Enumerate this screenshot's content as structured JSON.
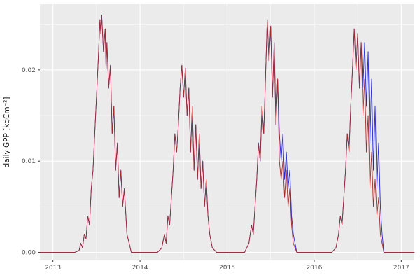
{
  "chart_data": {
    "type": "line",
    "title": "",
    "xlabel": "",
    "ylabel": "daily GPP [kgCm⁻²]",
    "xlim": [
      2012.85,
      2017.15
    ],
    "ylim": [
      -0.0008,
      0.0272
    ],
    "grid": true,
    "legend": "none",
    "panel_bg": "#EBEBEB",
    "grid_color": "#FFFFFF",
    "tick_color": "#333333",
    "x_ticks": {
      "values": [
        2013,
        2014,
        2015,
        2016,
        2017
      ],
      "labels": [
        "2013",
        "2014",
        "2015",
        "2016",
        "2017"
      ]
    },
    "x_minor": [
      2013.5,
      2014.5,
      2015.5,
      2016.5
    ],
    "y_ticks": {
      "values": [
        0,
        0.01,
        0.02
      ],
      "labels": [
        "0.00",
        "0.01",
        "0.02"
      ]
    },
    "y_minor": [
      0.005,
      0.015,
      0.025
    ],
    "series": [
      {
        "name": "series-blue",
        "color": "#2222DD",
        "x": [
          2012.85,
          2013.25,
          2013.3,
          2013.32,
          2013.34,
          2013.36,
          2013.38,
          2013.4,
          2013.42,
          2013.44,
          2013.46,
          2013.48,
          2013.5,
          2013.52,
          2013.54,
          2013.55,
          2013.56,
          2013.58,
          2013.6,
          2013.61,
          2013.62,
          2013.64,
          2013.66,
          2013.68,
          2013.7,
          2013.72,
          2013.74,
          2013.76,
          2013.78,
          2013.8,
          2013.82,
          2013.85,
          2013.9,
          2014.2,
          2014.25,
          2014.28,
          2014.3,
          2014.32,
          2014.34,
          2014.36,
          2014.38,
          2014.4,
          2014.42,
          2014.44,
          2014.46,
          2014.48,
          2014.5,
          2014.52,
          2014.54,
          2014.56,
          2014.58,
          2014.6,
          2014.62,
          2014.64,
          2014.66,
          2014.68,
          2014.7,
          2014.72,
          2014.74,
          2014.76,
          2014.78,
          2014.8,
          2014.83,
          2014.88,
          2015.2,
          2015.25,
          2015.28,
          2015.3,
          2015.32,
          2015.34,
          2015.36,
          2015.38,
          2015.4,
          2015.42,
          2015.44,
          2015.46,
          2015.48,
          2015.5,
          2015.52,
          2015.54,
          2015.56,
          2015.58,
          2015.6,
          2015.62,
          2015.64,
          2015.66,
          2015.68,
          2015.7,
          2015.72,
          2015.74,
          2015.76,
          2015.8,
          2016.2,
          2016.25,
          2016.28,
          2016.3,
          2016.32,
          2016.34,
          2016.36,
          2016.38,
          2016.4,
          2016.42,
          2016.44,
          2016.46,
          2016.48,
          2016.5,
          2016.52,
          2016.54,
          2016.56,
          2016.58,
          2016.6,
          2016.62,
          2016.64,
          2016.66,
          2016.68,
          2016.7,
          2016.72,
          2016.74,
          2016.76,
          2016.78,
          2016.8,
          2016.9,
          2017.15
        ],
        "y": [
          0,
          0,
          0.0002,
          0.001,
          0.0005,
          0.002,
          0.0015,
          0.004,
          0.003,
          0.007,
          0.009,
          0.013,
          0.017,
          0.021,
          0.0255,
          0.024,
          0.026,
          0.022,
          0.0245,
          0.02,
          0.023,
          0.018,
          0.0205,
          0.013,
          0.016,
          0.009,
          0.012,
          0.006,
          0.009,
          0.005,
          0.007,
          0.002,
          0,
          0,
          0.0005,
          0.002,
          0.001,
          0.004,
          0.003,
          0.006,
          0.009,
          0.013,
          0.011,
          0.014,
          0.018,
          0.0205,
          0.017,
          0.0202,
          0.015,
          0.018,
          0.011,
          0.016,
          0.009,
          0.014,
          0.008,
          0.013,
          0.007,
          0.01,
          0.005,
          0.008,
          0.004,
          0.002,
          0.0005,
          0,
          0,
          0.001,
          0.003,
          0.002,
          0.005,
          0.008,
          0.012,
          0.01,
          0.016,
          0.013,
          0.019,
          0.0255,
          0.021,
          0.0248,
          0.017,
          0.023,
          0.014,
          0.019,
          0.013,
          0.01,
          0.013,
          0.008,
          0.011,
          0.007,
          0.009,
          0.004,
          0.002,
          0,
          0,
          0.0005,
          0.002,
          0.004,
          0.003,
          0.006,
          0.009,
          0.013,
          0.011,
          0.016,
          0.02,
          0.0245,
          0.02,
          0.024,
          0.018,
          0.023,
          0.018,
          0.023,
          0.016,
          0.022,
          0.012,
          0.019,
          0.009,
          0.016,
          0.007,
          0.012,
          0.005,
          0.002,
          0,
          0,
          0
        ]
      },
      {
        "name": "series-darkred",
        "color": "#A52A2A",
        "x": [
          2012.85,
          2013.25,
          2013.3,
          2013.32,
          2013.34,
          2013.36,
          2013.38,
          2013.4,
          2013.42,
          2013.44,
          2013.46,
          2013.48,
          2013.5,
          2013.52,
          2013.54,
          2013.55,
          2013.56,
          2013.58,
          2013.6,
          2013.61,
          2013.62,
          2013.64,
          2013.66,
          2013.68,
          2013.7,
          2013.72,
          2013.74,
          2013.76,
          2013.78,
          2013.8,
          2013.82,
          2013.85,
          2013.9,
          2014.2,
          2014.25,
          2014.28,
          2014.3,
          2014.32,
          2014.34,
          2014.36,
          2014.38,
          2014.4,
          2014.42,
          2014.44,
          2014.46,
          2014.48,
          2014.5,
          2014.52,
          2014.54,
          2014.56,
          2014.58,
          2014.6,
          2014.62,
          2014.64,
          2014.66,
          2014.68,
          2014.7,
          2014.72,
          2014.74,
          2014.76,
          2014.78,
          2014.8,
          2014.83,
          2014.88,
          2015.2,
          2015.25,
          2015.28,
          2015.3,
          2015.32,
          2015.34,
          2015.36,
          2015.38,
          2015.4,
          2015.42,
          2015.44,
          2015.46,
          2015.48,
          2015.5,
          2015.52,
          2015.54,
          2015.56,
          2015.58,
          2015.6,
          2015.62,
          2015.64,
          2015.66,
          2015.68,
          2015.7,
          2015.72,
          2015.74,
          2015.76,
          2015.8,
          2016.2,
          2016.25,
          2016.28,
          2016.3,
          2016.32,
          2016.34,
          2016.36,
          2016.38,
          2016.4,
          2016.42,
          2016.44,
          2016.46,
          2016.48,
          2016.5,
          2016.52,
          2016.54,
          2016.56,
          2016.58,
          2016.6,
          2016.62,
          2016.64,
          2016.66,
          2016.68,
          2016.7,
          2016.72,
          2016.74,
          2016.76,
          2016.78,
          2016.8,
          2016.9,
          2017.15
        ],
        "y": [
          0,
          0,
          0.0002,
          0.001,
          0.0005,
          0.002,
          0.0015,
          0.004,
          0.003,
          0.007,
          0.009,
          0.013,
          0.017,
          0.021,
          0.0255,
          0.024,
          0.026,
          0.022,
          0.0245,
          0.02,
          0.023,
          0.018,
          0.0205,
          0.013,
          0.016,
          0.009,
          0.012,
          0.006,
          0.009,
          0.005,
          0.007,
          0.002,
          0,
          0,
          0.0005,
          0.002,
          0.001,
          0.004,
          0.003,
          0.006,
          0.009,
          0.013,
          0.011,
          0.014,
          0.018,
          0.0205,
          0.017,
          0.0202,
          0.015,
          0.018,
          0.011,
          0.016,
          0.009,
          0.014,
          0.008,
          0.013,
          0.007,
          0.01,
          0.005,
          0.008,
          0.004,
          0.002,
          0.0005,
          0,
          0,
          0.001,
          0.003,
          0.002,
          0.005,
          0.008,
          0.012,
          0.01,
          0.016,
          0.013,
          0.019,
          0.0255,
          0.021,
          0.0248,
          0.017,
          0.023,
          0.014,
          0.019,
          0.01,
          0.008,
          0.01,
          0.006,
          0.009,
          0.005,
          0.007,
          0.003,
          0.001,
          0,
          0,
          0.0005,
          0.002,
          0.004,
          0.003,
          0.006,
          0.009,
          0.013,
          0.011,
          0.016,
          0.02,
          0.0245,
          0.02,
          0.024,
          0.018,
          0.023,
          0.015,
          0.019,
          0.011,
          0.015,
          0.007,
          0.011,
          0.005,
          0.008,
          0.004,
          0.006,
          0.002,
          0.001,
          0,
          0,
          0
        ]
      }
    ]
  }
}
